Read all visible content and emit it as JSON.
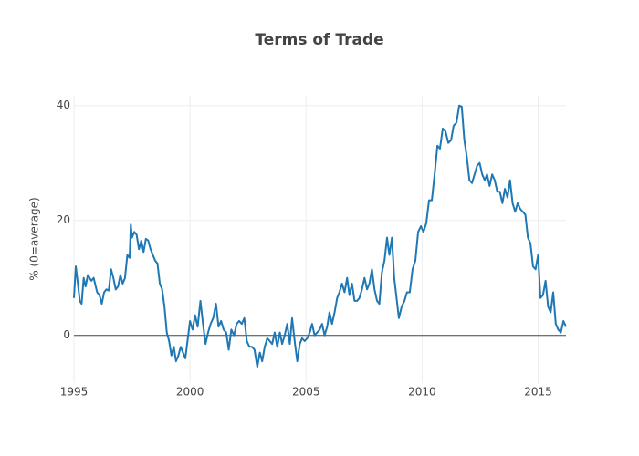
{
  "chart_data": {
    "type": "line",
    "title": "Terms of Trade",
    "y_label": "% (0=average)",
    "color": "#1f77b4",
    "grid": true,
    "zero_line": true,
    "xlim": [
      1995,
      2016.2
    ],
    "xticks": [
      1995,
      2000,
      2005,
      2010,
      2015
    ],
    "ylim": [
      -8.3,
      41.7
    ],
    "yticks": [
      0,
      20,
      40
    ],
    "x": [
      1995.0,
      1995.08,
      1995.17,
      1995.25,
      1995.33,
      1995.42,
      1995.5,
      1995.6,
      1995.75,
      1995.85,
      1996.0,
      1996.1,
      1996.2,
      1996.3,
      1996.4,
      1996.5,
      1996.6,
      1996.7,
      1996.8,
      1996.9,
      1997.0,
      1997.1,
      1997.2,
      1997.3,
      1997.4,
      1997.45,
      1997.5,
      1997.6,
      1997.7,
      1997.8,
      1997.9,
      1998.0,
      1998.1,
      1998.2,
      1998.3,
      1998.4,
      1998.5,
      1998.6,
      1998.7,
      1998.8,
      1998.9,
      1999.0,
      1999.1,
      1999.2,
      1999.3,
      1999.4,
      1999.5,
      1999.6,
      1999.7,
      1999.8,
      2000.0,
      2000.11,
      2000.22,
      2000.33,
      2000.45,
      2000.56,
      2000.67,
      2000.78,
      2000.89,
      2001.0,
      2001.12,
      2001.23,
      2001.34,
      2001.45,
      2001.56,
      2001.67,
      2001.78,
      2001.9,
      2002.01,
      2002.12,
      2002.23,
      2002.34,
      2002.45,
      2002.56,
      2002.67,
      2002.78,
      2002.9,
      2003.01,
      2003.11,
      2003.22,
      2003.33,
      2003.44,
      2003.54,
      2003.65,
      2003.76,
      2003.87,
      2003.97,
      2004.08,
      2004.19,
      2004.3,
      2004.4,
      2004.51,
      2004.62,
      2004.73,
      2004.83,
      2004.94,
      2005.05,
      2005.16,
      2005.26,
      2005.37,
      2005.48,
      2005.59,
      2005.69,
      2005.8,
      2005.91,
      2006.01,
      2006.12,
      2006.23,
      2006.34,
      2006.44,
      2006.55,
      2006.66,
      2006.77,
      2006.87,
      2006.98,
      2007.09,
      2007.2,
      2007.3,
      2007.41,
      2007.52,
      2007.63,
      2007.73,
      2007.84,
      2007.95,
      2008.06,
      2008.16,
      2008.27,
      2008.38,
      2008.49,
      2008.59,
      2008.7,
      2008.8,
      2009.0,
      2009.12,
      2009.24,
      2009.35,
      2009.47,
      2009.59,
      2009.71,
      2009.83,
      2009.95,
      2010.06,
      2010.18,
      2010.3,
      2010.42,
      2010.54,
      2010.66,
      2010.77,
      2010.89,
      2011.01,
      2011.13,
      2011.25,
      2011.36,
      2011.48,
      2011.6,
      2011.71,
      2011.82,
      2011.93,
      2012.04,
      2012.15,
      2012.26,
      2012.37,
      2012.48,
      2012.59,
      2012.7,
      2012.8,
      2012.91,
      2013.02,
      2013.13,
      2013.24,
      2013.35,
      2013.46,
      2013.57,
      2013.68,
      2013.79,
      2013.9,
      2014.01,
      2014.12,
      2014.23,
      2014.34,
      2014.45,
      2014.56,
      2014.67,
      2014.78,
      2014.89,
      2015.0,
      2015.1,
      2015.21,
      2015.32,
      2015.43,
      2015.54,
      2015.65,
      2015.76,
      2015.87,
      2015.98,
      2016.09,
      2016.2
    ],
    "values": [
      6.5,
      12,
      9,
      6,
      5.5,
      10,
      8.5,
      10.5,
      9.5,
      10,
      7.5,
      7,
      5.5,
      7.5,
      8,
      7.8,
      11.5,
      10,
      8,
      8.5,
      10.5,
      9,
      10,
      14,
      13.5,
      19.3,
      17,
      18,
      17.5,
      15,
      16.5,
      14.5,
      16.8,
      16.5,
      15,
      14,
      13,
      12.5,
      9,
      8,
      5,
      0.5,
      -1,
      -3.5,
      -2,
      -4.5,
      -3.5,
      -2,
      -3,
      -4,
      2.5,
      1,
      3.5,
      1.5,
      6,
      2,
      -1.5,
      0.5,
      2,
      3,
      5.5,
      1.5,
      2.5,
      1,
      0.5,
      -2.5,
      1,
      0,
      2,
      2.5,
      2,
      3,
      -1,
      -2,
      -2,
      -2.5,
      -5.5,
      -3,
      -4.5,
      -2,
      -0.5,
      -1,
      -1.5,
      0.5,
      -2,
      0.5,
      -1.5,
      0,
      2,
      -1.5,
      3,
      -1,
      -4.5,
      -1.5,
      -0.5,
      -1,
      -0.5,
      0.5,
      2,
      0,
      0.5,
      1,
      2,
      0,
      1.5,
      4,
      2,
      4,
      6.5,
      7.5,
      9,
      7.5,
      10,
      7,
      9,
      6,
      6,
      6.5,
      8,
      10,
      8,
      9,
      11.5,
      8,
      6,
      5.5,
      11,
      13,
      17,
      14,
      17,
      10,
      3,
      5,
      6,
      7.5,
      7.5,
      11.5,
      13,
      18,
      19,
      18,
      19.5,
      23.5,
      23.5,
      28,
      33,
      32.5,
      36,
      35.5,
      33.5,
      34,
      36.5,
      37,
      40,
      39.8,
      34,
      31,
      27,
      26.5,
      28,
      29.5,
      30,
      28,
      27,
      28,
      26,
      28,
      27,
      25,
      25,
      23,
      25.5,
      24,
      27,
      23,
      21.5,
      23,
      22,
      21.5,
      21,
      17,
      16,
      12,
      11.5,
      14,
      6.5,
      7,
      9.5,
      5,
      4,
      7.5,
      2,
      1,
      0.5,
      2.5,
      1.5
    ]
  }
}
